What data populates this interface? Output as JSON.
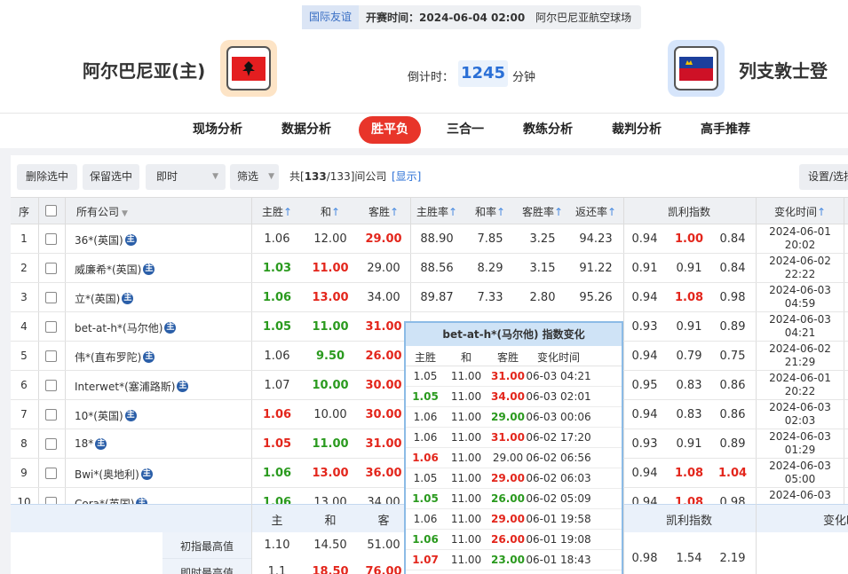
{
  "header": {
    "match_type": "国际友谊",
    "kickoff_label": "开赛时间：",
    "kickoff_time": "2024-06-04 02:00",
    "venue": "阿尔巴尼亚航空球场",
    "home_team": "阿尔巴尼亚(主)",
    "away_team": "列支敦士登",
    "countdown_label": "倒计时：",
    "countdown_value": "1245",
    "countdown_unit": "分钟"
  },
  "tabs": {
    "items": [
      "现场分析",
      "数据分析",
      "胜平负",
      "三合一",
      "教练分析",
      "裁判分析",
      "高手推荐"
    ],
    "active": 2
  },
  "toolbar": {
    "buttons": [
      "删除选中",
      "保留选中"
    ],
    "mode": "即时",
    "filter": "筛选",
    "count_prefix": "共[",
    "count_shown": "133",
    "count_suffix": "/133]间公司",
    "show_link": "[显示]",
    "settings": "设置/选择"
  },
  "table": {
    "columns": [
      "序",
      "所有公司",
      "主胜",
      "和",
      "客胜",
      "主胜率",
      "和率",
      "客胜率",
      "返还率",
      "凯利指数",
      "变化时间"
    ],
    "home_icon": "主",
    "rows": [
      {
        "index": "1",
        "company": "36*(英国)",
        "odds": [
          "1.06",
          "12.00",
          "29.00"
        ],
        "odds_colors": [
          null,
          null,
          "#e3261c"
        ],
        "rates": [
          "88.90",
          "7.85",
          "3.25",
          "94.23"
        ],
        "kelly": [
          "0.94",
          "1.00",
          "0.84"
        ],
        "kelly_colors": [
          null,
          "#e3261c",
          null
        ],
        "time": [
          "2024-06-01",
          "20:02"
        ]
      },
      {
        "index": "2",
        "company": "威廉希*(英国)",
        "odds": [
          "1.03",
          "11.00",
          "29.00"
        ],
        "odds_colors": [
          "#2a9a1e",
          "#e3261c",
          null
        ],
        "rates": [
          "88.56",
          "8.29",
          "3.15",
          "91.22"
        ],
        "kelly": [
          "0.91",
          "0.91",
          "0.84"
        ],
        "kelly_colors": [
          null,
          null,
          null
        ],
        "time": [
          "2024-06-02",
          "22:22"
        ]
      },
      {
        "index": "3",
        "company": "立*(英国)",
        "odds": [
          "1.06",
          "13.00",
          "34.00"
        ],
        "odds_colors": [
          "#2a9a1e",
          "#e3261c",
          null
        ],
        "rates": [
          "89.87",
          "7.33",
          "2.80",
          "95.26"
        ],
        "kelly": [
          "0.94",
          "1.08",
          "0.98"
        ],
        "kelly_colors": [
          null,
          "#e3261c",
          null
        ],
        "time": [
          "2024-06-03",
          "04:59"
        ]
      },
      {
        "index": "4",
        "company": "bet-at-h*(马尔他)",
        "odds": [
          "1.05",
          "11.00",
          "31.00"
        ],
        "odds_colors": [
          "#2a9a1e",
          "#2a9a1e",
          "#e3261c"
        ],
        "kelly": [
          "0.93",
          "0.91",
          "0.89"
        ],
        "kelly_colors": [
          null,
          null,
          null
        ],
        "time": [
          "2024-06-03",
          "04:21"
        ]
      },
      {
        "index": "5",
        "company": "伟*(直布罗陀)",
        "odds": [
          "1.06",
          "9.50",
          "26.00"
        ],
        "odds_colors": [
          null,
          "#2a9a1e",
          "#e3261c"
        ],
        "kelly": [
          "0.94",
          "0.79",
          "0.75"
        ],
        "kelly_colors": [
          null,
          null,
          null
        ],
        "time": [
          "2024-06-02",
          "21:29"
        ]
      },
      {
        "index": "6",
        "company": "Interwet*(塞浦路斯)",
        "odds": [
          "1.07",
          "10.00",
          "30.00"
        ],
        "odds_colors": [
          null,
          "#2a9a1e",
          "#e3261c"
        ],
        "kelly": [
          "0.95",
          "0.83",
          "0.86"
        ],
        "kelly_colors": [
          null,
          null,
          null
        ],
        "time": [
          "2024-06-01",
          "20:22"
        ]
      },
      {
        "index": "7",
        "company": "10*(英国)",
        "odds": [
          "1.06",
          "10.00",
          "30.00"
        ],
        "odds_colors": [
          "#e3261c",
          null,
          "#e3261c"
        ],
        "kelly": [
          "0.94",
          "0.83",
          "0.86"
        ],
        "kelly_colors": [
          null,
          null,
          null
        ],
        "time": [
          "2024-06-03",
          "02:03"
        ]
      },
      {
        "index": "8",
        "company": "18*",
        "odds": [
          "1.05",
          "11.00",
          "31.00"
        ],
        "odds_colors": [
          "#e3261c",
          "#2a9a1e",
          "#e3261c"
        ],
        "kelly": [
          "0.93",
          "0.91",
          "0.89"
        ],
        "kelly_colors": [
          null,
          null,
          null
        ],
        "time": [
          "2024-06-03",
          "01:29"
        ]
      },
      {
        "index": "9",
        "company": "Bwi*(奥地利)",
        "odds": [
          "1.06",
          "13.00",
          "36.00"
        ],
        "odds_colors": [
          "#2a9a1e",
          "#e3261c",
          "#e3261c"
        ],
        "kelly": [
          "0.94",
          "1.08",
          "1.04"
        ],
        "kelly_colors": [
          null,
          "#e3261c",
          "#e3261c"
        ],
        "time": [
          "2024-06-03",
          "05:00"
        ]
      },
      {
        "index": "10",
        "company": "Cora*(英国)",
        "odds": [
          "1.06",
          "13.00",
          "34.00"
        ],
        "odds_colors": [
          "#2a9a1e",
          null,
          null
        ],
        "kelly": [
          "0.94",
          "1.08",
          "0.98"
        ],
        "kelly_colors": [
          null,
          "#e3261c",
          null
        ],
        "time": [
          "2024-06-03"
        ]
      }
    ]
  },
  "summary": {
    "columns": [
      "主",
      "和",
      "客",
      "凯利指数",
      "变化时"
    ],
    "rows": [
      {
        "label": "初指最高值",
        "values": [
          "1.10",
          "14.50",
          "51.00"
        ],
        "colors": [
          null,
          null,
          null
        ],
        "kelly": [
          "0.98",
          "1.54",
          "2.19"
        ]
      },
      {
        "label": "即时最高值",
        "values": [
          "1.1",
          "18.50",
          "76.00"
        ],
        "colors": [
          null,
          "#e3261c",
          "#e3261c"
        ]
      }
    ]
  },
  "popup": {
    "title": "bet-at-h*(马尔他) 指数变化",
    "columns": [
      "主胜",
      "和",
      "客胜",
      "变化时间"
    ],
    "rows": [
      {
        "odds": [
          "1.05",
          "11.00",
          "31.00"
        ],
        "colors": [
          null,
          null,
          "#e3261c"
        ],
        "time": "06-03 04:21"
      },
      {
        "odds": [
          "1.05",
          "11.00",
          "34.00"
        ],
        "colors": [
          "#2a9a1e",
          null,
          "#e3261c"
        ],
        "time": "06-03 02:01"
      },
      {
        "odds": [
          "1.06",
          "11.00",
          "29.00"
        ],
        "colors": [
          null,
          null,
          "#2a9a1e"
        ],
        "time": "06-03 00:06"
      },
      {
        "odds": [
          "1.06",
          "11.00",
          "31.00"
        ],
        "colors": [
          null,
          null,
          "#e3261c"
        ],
        "time": "06-02 17:20"
      },
      {
        "odds": [
          "1.06",
          "11.00",
          "29.00"
        ],
        "colors": [
          "#e3261c",
          null,
          null
        ],
        "time": "06-02 06:56"
      },
      {
        "odds": [
          "1.05",
          "11.00",
          "29.00"
        ],
        "colors": [
          null,
          null,
          "#e3261c"
        ],
        "time": "06-02 06:03"
      },
      {
        "odds": [
          "1.05",
          "11.00",
          "26.00"
        ],
        "colors": [
          "#2a9a1e",
          null,
          "#2a9a1e"
        ],
        "time": "06-02 05:09"
      },
      {
        "odds": [
          "1.06",
          "11.00",
          "29.00"
        ],
        "colors": [
          null,
          null,
          "#e3261c"
        ],
        "time": "06-01 19:58"
      },
      {
        "odds": [
          "1.06",
          "11.00",
          "26.00"
        ],
        "colors": [
          "#2a9a1e",
          null,
          "#e3261c"
        ],
        "time": "06-01 19:08"
      },
      {
        "odds": [
          "1.07",
          "11.00",
          "23.00"
        ],
        "colors": [
          "#e3261c",
          null,
          "#2a9a1e"
        ],
        "time": "06-01 18:43"
      }
    ]
  }
}
